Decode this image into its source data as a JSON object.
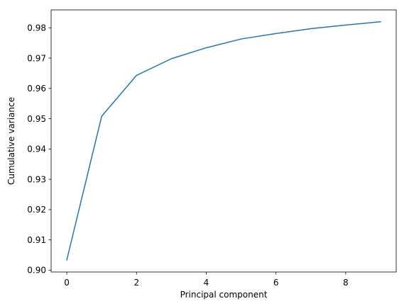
{
  "colors": {
    "line": "#1f77b4",
    "axes": "#000000",
    "background": "#ffffff"
  },
  "chart_data": {
    "type": "line",
    "title": "",
    "xlabel": "Principal component",
    "ylabel": "Cumulative variance",
    "xlim": [
      -0.45,
      9.45
    ],
    "ylim": [
      0.8994,
      0.9859
    ],
    "grid": false,
    "xticks": [
      0,
      2,
      4,
      6,
      8
    ],
    "xtick_labels": [
      "0",
      "2",
      "4",
      "6",
      "8"
    ],
    "yticks": [
      0.9,
      0.91,
      0.92,
      0.93,
      0.94,
      0.95,
      0.96,
      0.97,
      0.98
    ],
    "ytick_labels": [
      "0.90",
      "0.91",
      "0.92",
      "0.93",
      "0.94",
      "0.95",
      "0.96",
      "0.97",
      "0.98"
    ],
    "series": [
      {
        "x": [
          0,
          1,
          2,
          3,
          4,
          5,
          6,
          7,
          8,
          9
        ],
        "values": [
          0.9034,
          0.9508,
          0.9643,
          0.9698,
          0.9734,
          0.9763,
          0.9781,
          0.9797,
          0.9809,
          0.982
        ]
      }
    ]
  }
}
